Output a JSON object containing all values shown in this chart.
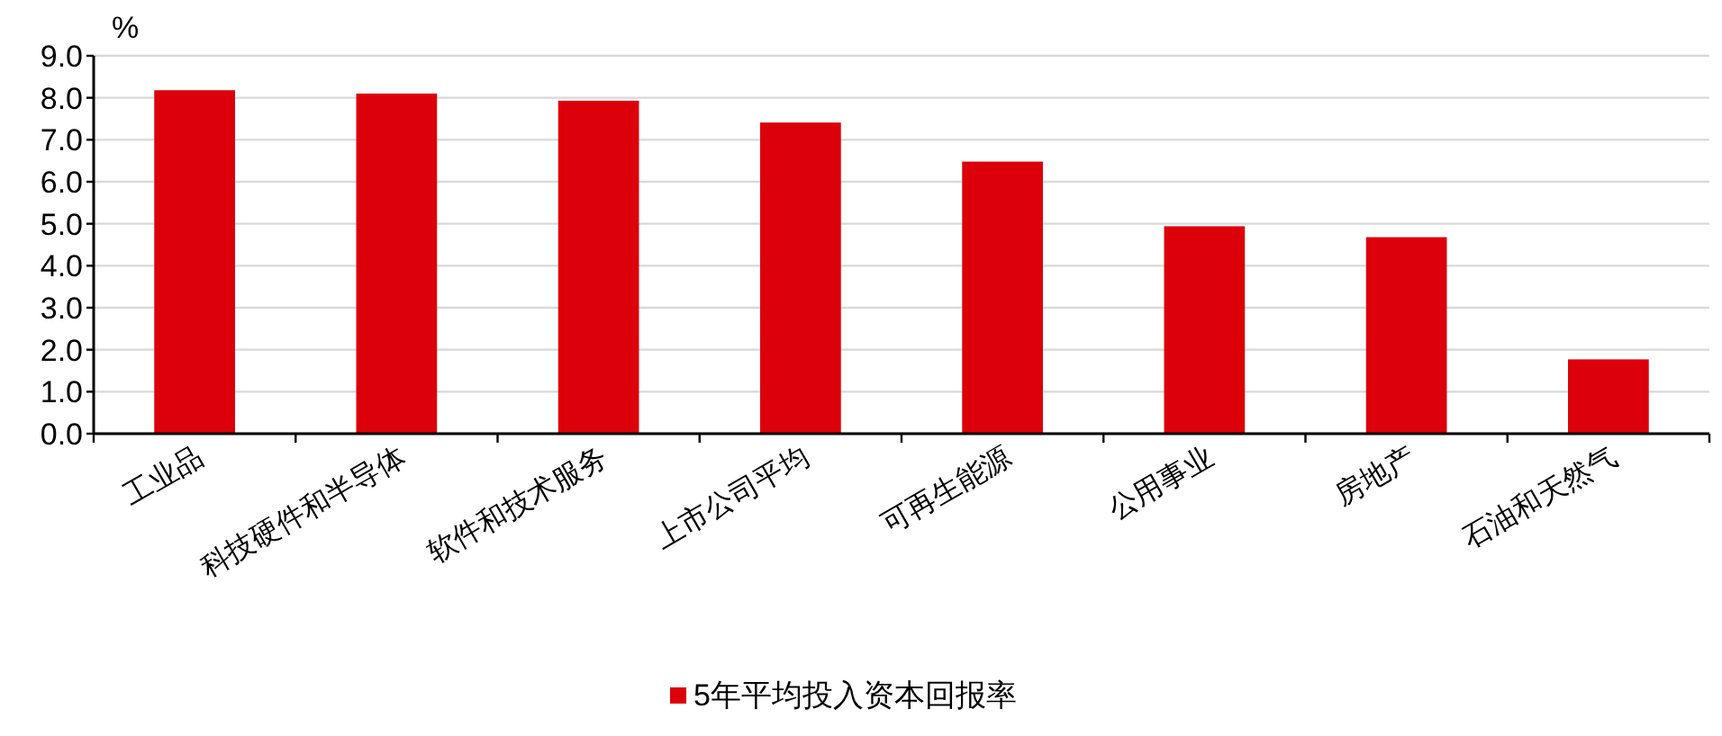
{
  "chart_data": {
    "type": "bar",
    "ylabel": "%",
    "categories": [
      "工业品",
      "科技硬件和半导体",
      "软件和技术服务",
      "上市公司平均",
      "可再生能源",
      "公用事业",
      "房地产",
      "石油和天然气"
    ],
    "series": [
      {
        "name": "5年平均投入资本回报率",
        "color": "#dc000b",
        "values": [
          8.18,
          8.1,
          7.93,
          7.41,
          6.48,
          4.94,
          4.68,
          1.77
        ]
      }
    ],
    "ylim": [
      0,
      9
    ],
    "yticks": [
      {
        "value": 0,
        "label": "0.0"
      },
      {
        "value": 1,
        "label": "1.0"
      },
      {
        "value": 2,
        "label": "2.0"
      },
      {
        "value": 3,
        "label": "3.0"
      },
      {
        "value": 4,
        "label": "4.0"
      },
      {
        "value": 5,
        "label": "5.0"
      },
      {
        "value": 6,
        "label": "6.0"
      },
      {
        "value": 7,
        "label": "7.0"
      },
      {
        "value": 8,
        "label": "8.0"
      },
      {
        "value": 9,
        "label": "9.0"
      }
    ],
    "grid": "y",
    "legend": "bottom"
  }
}
